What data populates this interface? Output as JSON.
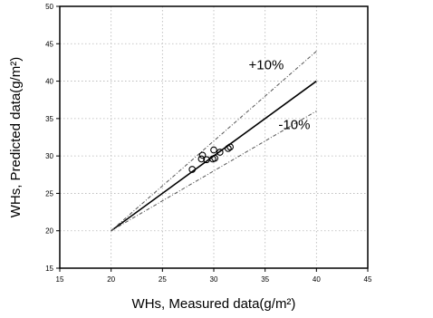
{
  "chart_data": {
    "type": "scatter",
    "xlabel": "WHs, Measured data(g/m²)",
    "ylabel": "WHs, Predicted data(g/m²)",
    "xlim": [
      15,
      45
    ],
    "ylim": [
      15,
      50
    ],
    "x_ticks": [
      "15",
      "20",
      "25",
      "30",
      "35",
      "40",
      "45"
    ],
    "y_ticks": [
      "15",
      "20",
      "25",
      "30",
      "35",
      "40",
      "45",
      "50"
    ],
    "grid": true,
    "series": [
      {
        "marker": "open-circle",
        "points": [
          {
            "x": 27.9,
            "y": 28.2
          },
          {
            "x": 28.8,
            "y": 29.6
          },
          {
            "x": 28.9,
            "y": 30.1
          },
          {
            "x": 29.3,
            "y": 29.5
          },
          {
            "x": 29.9,
            "y": 29.6
          },
          {
            "x": 30.0,
            "y": 30.8
          },
          {
            "x": 30.1,
            "y": 29.7
          },
          {
            "x": 30.6,
            "y": 30.5
          },
          {
            "x": 31.4,
            "y": 31.0
          },
          {
            "x": 31.6,
            "y": 31.2
          }
        ]
      }
    ],
    "reference_lines": [
      {
        "x": [
          20,
          40
        ],
        "y": [
          20,
          40
        ],
        "style": "solid"
      },
      {
        "x": [
          20,
          40
        ],
        "y": [
          20,
          44
        ],
        "style": "dashed",
        "label": "+10%"
      },
      {
        "x": [
          20,
          40
        ],
        "y": [
          20,
          36
        ],
        "style": "dashed",
        "label": "-10%"
      }
    ],
    "annotations": [
      {
        "text": "+10%",
        "x": 33.4,
        "y": 41.6
      },
      {
        "text": "-10%",
        "x": 36.3,
        "y": 33.6
      }
    ]
  }
}
